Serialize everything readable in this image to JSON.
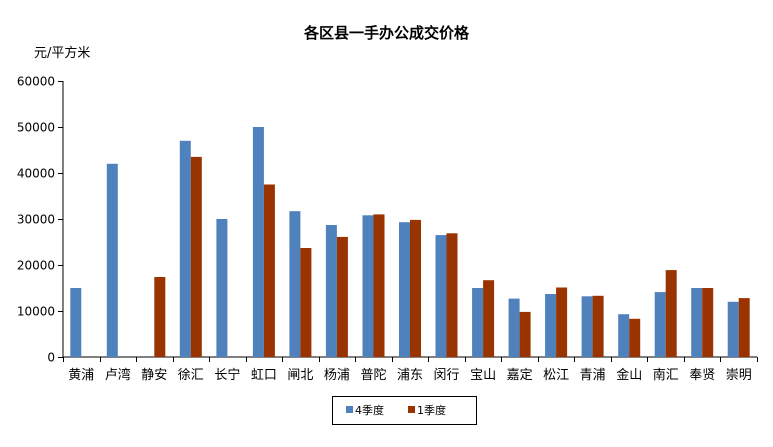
{
  "chart_data": {
    "type": "bar",
    "title": "各区县一手办公成交价格",
    "ylabel": "元/平方米",
    "xlabel": "",
    "ylim": [
      0,
      60000
    ],
    "yticks": [
      0,
      10000,
      20000,
      30000,
      40000,
      50000,
      60000
    ],
    "grid": false,
    "legend_position": "bottom",
    "categories": [
      "黄浦",
      "卢湾",
      "静安",
      "徐汇",
      "长宁",
      "虹口",
      "闸北",
      "杨浦",
      "普陀",
      "浦东",
      "闵行",
      "宝山",
      "嘉定",
      "松江",
      "青浦",
      "金山",
      "南汇",
      "奉贤",
      "崇明"
    ],
    "series": [
      {
        "name": "4季度",
        "color": "#4f81bd",
        "values": [
          15000,
          42000,
          null,
          47000,
          30000,
          50000,
          31700,
          28700,
          30800,
          29300,
          26500,
          15000,
          12700,
          13700,
          13200,
          9300,
          14100,
          15000,
          12000
        ]
      },
      {
        "name": "1季度",
        "color": "#993300",
        "values": [
          null,
          null,
          17400,
          43500,
          null,
          37500,
          23700,
          26100,
          31000,
          29800,
          26900,
          16700,
          9800,
          15100,
          13300,
          8300,
          18900,
          15000,
          12800
        ]
      }
    ]
  }
}
